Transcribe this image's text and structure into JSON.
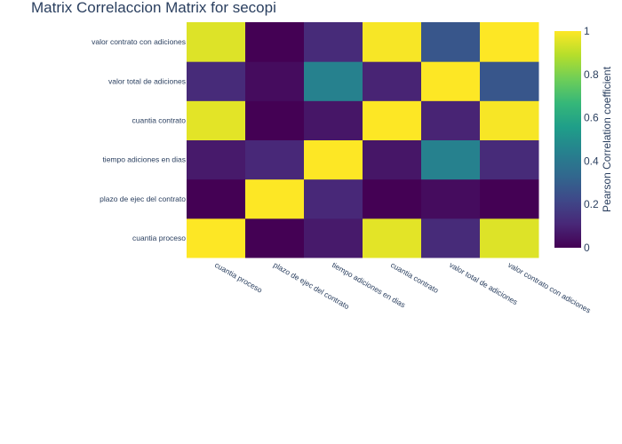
{
  "chart_data": {
    "type": "heatmap",
    "title": "Matrix Correlaccion Matrix for secopi",
    "x": [
      "cuantia proceso",
      "plazo de ejec del contrato",
      "tiempo adiciones en dias",
      "cuantia contrato",
      "valor total de adiciones",
      "valor contrato con adiciones"
    ],
    "y": [
      "cuantia proceso",
      "plazo de ejec del contrato",
      "tiempo adiciones en dias",
      "cuantia contrato",
      "valor total de adiciones",
      "valor contrato con adiciones"
    ],
    "z": [
      [
        1.0,
        0.0,
        0.07,
        0.96,
        0.12,
        0.95
      ],
      [
        0.0,
        1.0,
        0.11,
        0.0,
        0.03,
        0.0
      ],
      [
        0.07,
        0.11,
        1.0,
        0.06,
        0.44,
        0.12
      ],
      [
        0.96,
        0.0,
        0.06,
        1.0,
        0.1,
        0.99
      ],
      [
        0.12,
        0.03,
        0.44,
        0.1,
        1.0,
        0.27
      ],
      [
        0.95,
        0.0,
        0.12,
        0.99,
        0.27,
        1.0
      ]
    ],
    "colorscale": "Viridis",
    "zlim": [
      0,
      1
    ],
    "colorbar": {
      "title": "Pearson Correlation coefficient",
      "ticks": [
        0,
        0.2,
        0.4,
        0.6,
        0.8,
        1
      ],
      "tick_labels": [
        "0",
        "0.2",
        "0.4",
        "0.6",
        "0.8",
        "1"
      ]
    }
  }
}
